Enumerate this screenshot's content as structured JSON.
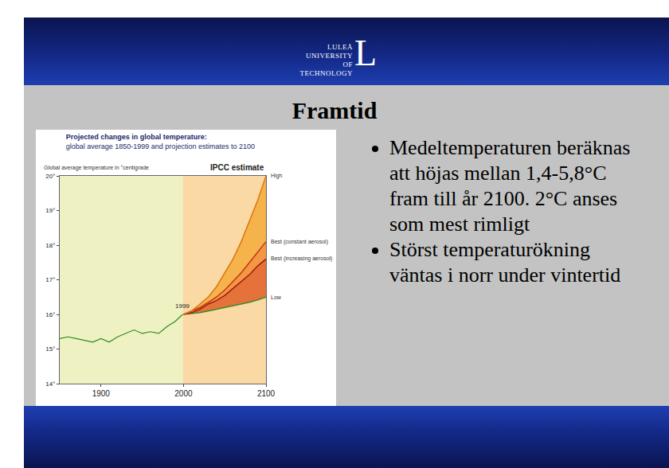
{
  "logo": {
    "lines": [
      "LULEÅ",
      "UNIVERSITY",
      "OF TECHNOLOGY"
    ],
    "letter": "L"
  },
  "title": "Framtid",
  "bullets": [
    "Medeltemperaturen beräknas att höjas mellan 1,4-5,8°C fram till år 2100. 2°C anses som mest rimligt",
    "Störst temperaturökning väntas i norr under vintertid"
  ],
  "chart_data": {
    "type": "line",
    "title": "Projected changes in global temperature:",
    "subtitle": "global average 1850-1999 and projection estimates to 2100",
    "y_label": "Global average temperature in °centigrade",
    "series_heading": "IPCC estimate",
    "xlim": [
      1850,
      2100
    ],
    "xticks": [
      1900,
      2000,
      2100
    ],
    "ylim": [
      14,
      20
    ],
    "yticks": [
      {
        "value": 14,
        "label": "14°"
      },
      {
        "value": 15,
        "label": "15°"
      },
      {
        "value": 16,
        "label": "16°"
      },
      {
        "value": 17,
        "label": "17°"
      },
      {
        "value": 18,
        "label": "18°"
      },
      {
        "value": 19,
        "label": "19°"
      },
      {
        "value": 20,
        "label": "20°"
      }
    ],
    "grid": false,
    "series": [
      {
        "name": null,
        "color": "#2e8b1e",
        "x": [
          1850,
          1860,
          1870,
          1880,
          1890,
          1900,
          1910,
          1920,
          1930,
          1940,
          1950,
          1960,
          1970,
          1980,
          1990,
          1999
        ],
        "values": [
          15.3,
          15.35,
          15.3,
          15.25,
          15.2,
          15.3,
          15.2,
          15.35,
          15.45,
          15.55,
          15.45,
          15.5,
          15.45,
          15.65,
          15.8,
          16.0
        ]
      },
      {
        "name": "Low",
        "color": "#3c8c2a",
        "x": [
          2000,
          2010,
          2020,
          2030,
          2040,
          2050,
          2060,
          2070,
          2080,
          2090,
          2100
        ],
        "values": [
          16.0,
          16.02,
          16.05,
          16.1,
          16.15,
          16.2,
          16.25,
          16.3,
          16.35,
          16.42,
          16.5
        ]
      },
      {
        "name": "Best (increasing aerosol)",
        "color": "#9b1c10",
        "x": [
          2000,
          2010,
          2020,
          2030,
          2040,
          2050,
          2060,
          2070,
          2080,
          2090,
          2100
        ],
        "values": [
          16.0,
          16.05,
          16.15,
          16.3,
          16.4,
          16.55,
          16.75,
          16.95,
          17.15,
          17.4,
          17.6
        ]
      },
      {
        "name": "Best (constant aerosol)",
        "color": "#c8321a",
        "x": [
          2000,
          2010,
          2020,
          2030,
          2040,
          2050,
          2060,
          2070,
          2080,
          2090,
          2100
        ],
        "values": [
          16.0,
          16.1,
          16.2,
          16.35,
          16.5,
          16.7,
          16.95,
          17.2,
          17.5,
          17.8,
          18.1
        ]
      },
      {
        "name": "High",
        "color": "#d9780f",
        "x": [
          2000,
          2010,
          2020,
          2030,
          2040,
          2050,
          2060,
          2070,
          2080,
          2090,
          2100
        ],
        "values": [
          16.0,
          16.1,
          16.3,
          16.5,
          16.8,
          17.2,
          17.6,
          18.1,
          18.7,
          19.3,
          20.0
        ]
      }
    ],
    "annotations": [
      {
        "text": "1999",
        "x": 1999,
        "y": 16.0
      }
    ]
  }
}
